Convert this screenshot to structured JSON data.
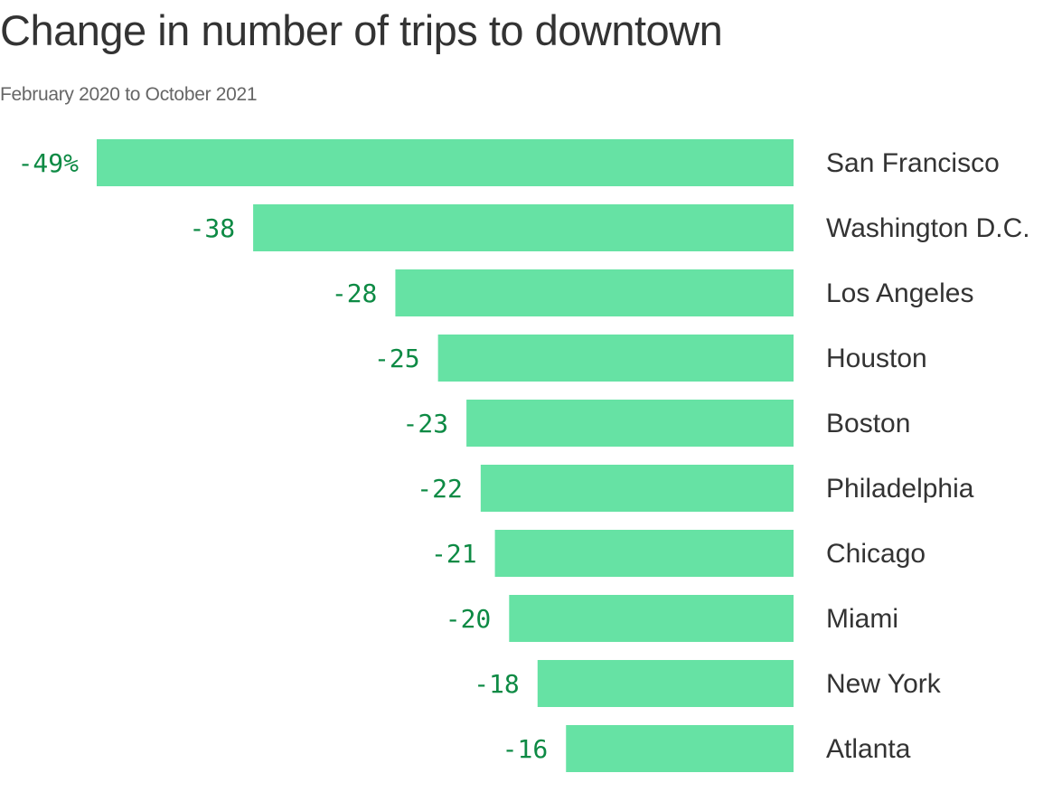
{
  "title": "Change in number of trips to downtown",
  "subtitle": "February 2020 to October 2021",
  "colors": {
    "bar": "#66e2a4",
    "value_label": "#0d8a44",
    "category_label": "#333333"
  },
  "chart_data": {
    "type": "bar",
    "orientation": "horizontal",
    "title": "Change in number of trips to downtown",
    "subtitle": "February 2020 to October 2021",
    "categories": [
      "San Francisco",
      "Washington D.C.",
      "Los Angeles",
      "Houston",
      "Boston",
      "Philadelphia",
      "Chicago",
      "Miami",
      "New York",
      "Atlanta"
    ],
    "values": [
      -49,
      -38,
      -28,
      -25,
      -23,
      -22,
      -21,
      -20,
      -18,
      -16
    ],
    "value_labels": [
      "-49%",
      "-38",
      "-28",
      "-25",
      "-23",
      "-22",
      "-21",
      "-20",
      "-18",
      "-16"
    ],
    "xlim": [
      -49,
      0
    ],
    "grid": false
  }
}
